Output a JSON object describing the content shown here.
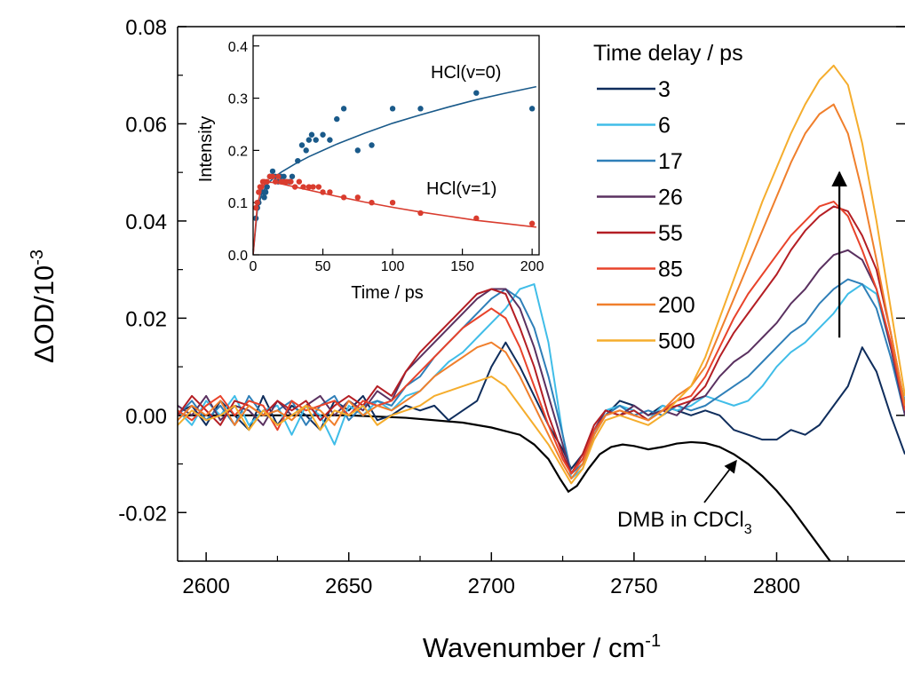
{
  "chart_data": [
    {
      "type": "line",
      "xlabel": "Wavenumber / cm",
      "xlabel_sup": "-1",
      "ylabel": "ΔOD/10",
      "ylabel_sup": "-3",
      "xlim": [
        2590,
        2845
      ],
      "ylim": [
        -0.03,
        0.08
      ],
      "xticks": [
        "2600",
        "2650",
        "2700",
        "2750",
        "2800"
      ],
      "yticks": [
        "-0.02",
        "0.00",
        "0.02",
        "0.04",
        "0.06",
        "0.08"
      ],
      "grid": false,
      "legend_title": "Time delay / ps",
      "legend_position": "top-right",
      "x": [
        2590,
        2595,
        2600,
        2605,
        2610,
        2615,
        2620,
        2625,
        2630,
        2635,
        2640,
        2645,
        2650,
        2655,
        2660,
        2665,
        2670,
        2675,
        2680,
        2685,
        2690,
        2695,
        2700,
        2705,
        2710,
        2715,
        2720,
        2725,
        2728,
        2732,
        2736,
        2740,
        2745,
        2750,
        2755,
        2760,
        2765,
        2770,
        2775,
        2780,
        2785,
        2790,
        2795,
        2800,
        2805,
        2810,
        2815,
        2820,
        2825,
        2830,
        2835,
        2840,
        2845
      ],
      "series": [
        {
          "name": "3",
          "color": "#0f2d5c",
          "values": [
            0.0005,
            0.002,
            -0.002,
            0.003,
            0.0,
            -0.003,
            0.004,
            -0.002,
            0.002,
            0.0,
            -0.003,
            0.003,
            0.001,
            0.004,
            -0.001,
            0.0,
            0.002,
            0.001,
            0.002,
            -0.001,
            0.001,
            0.003,
            0.01,
            0.015,
            0.01,
            0.004,
            -0.002,
            -0.007,
            -0.011,
            -0.008,
            -0.003,
            0.0,
            0.003,
            0.002,
            0.0,
            0.002,
            0.001,
            0.0,
            0.001,
            0.0,
            -0.003,
            -0.004,
            -0.005,
            -0.005,
            -0.003,
            -0.004,
            -0.002,
            0.002,
            0.006,
            0.014,
            0.009,
            0.0,
            -0.008
          ]
        },
        {
          "name": "6",
          "color": "#40bde8",
          "values": [
            0.001,
            -0.002,
            0.003,
            0.0,
            0.004,
            -0.002,
            0.001,
            0.002,
            -0.004,
            0.002,
            0.0,
            -0.006,
            0.002,
            0.0,
            0.003,
            0.001,
            0.004,
            0.005,
            0.008,
            0.011,
            0.013,
            0.016,
            0.019,
            0.022,
            0.026,
            0.027,
            0.015,
            -0.004,
            -0.013,
            -0.011,
            -0.004,
            0.001,
            0.002,
            0.001,
            -0.001,
            0.002,
            0.001,
            0.002,
            0.004,
            0.003,
            0.002,
            0.003,
            0.006,
            0.01,
            0.013,
            0.015,
            0.018,
            0.021,
            0.025,
            0.027,
            0.025,
            0.014,
            0.003
          ]
        },
        {
          "name": "17",
          "color": "#2f7fb8",
          "values": [
            0.0,
            0.003,
            -0.001,
            0.002,
            -0.002,
            0.004,
            0.0,
            0.001,
            0.003,
            -0.002,
            0.002,
            0.004,
            -0.001,
            0.002,
            0.003,
            0.002,
            0.006,
            0.008,
            0.012,
            0.015,
            0.018,
            0.021,
            0.024,
            0.026,
            0.024,
            0.018,
            0.008,
            -0.004,
            -0.012,
            -0.01,
            -0.004,
            0.0,
            0.002,
            0.0,
            0.001,
            0.0,
            0.002,
            0.001,
            0.002,
            0.004,
            0.006,
            0.008,
            0.011,
            0.014,
            0.017,
            0.019,
            0.023,
            0.026,
            0.028,
            0.027,
            0.022,
            0.012,
            0.0
          ]
        },
        {
          "name": "26",
          "color": "#5a3160",
          "values": [
            0.002,
            0.0,
            0.004,
            -0.001,
            0.002,
            0.001,
            -0.002,
            0.003,
            0.0,
            0.002,
            0.004,
            0.0,
            0.003,
            0.001,
            0.005,
            0.003,
            0.009,
            0.012,
            0.015,
            0.018,
            0.021,
            0.024,
            0.026,
            0.026,
            0.022,
            0.014,
            0.004,
            -0.006,
            -0.012,
            -0.009,
            -0.003,
            0.001,
            0.0,
            0.002,
            0.0,
            0.001,
            0.0,
            0.003,
            0.004,
            0.008,
            0.011,
            0.013,
            0.016,
            0.019,
            0.023,
            0.026,
            0.03,
            0.033,
            0.034,
            0.032,
            0.026,
            0.014,
            0.0
          ]
        },
        {
          "name": "55",
          "color": "#b41e24",
          "values": [
            0.0,
            0.004,
            0.001,
            -0.002,
            0.003,
            0.002,
            0.0,
            0.003,
            0.001,
            0.003,
            -0.001,
            0.002,
            0.004,
            0.002,
            0.006,
            0.004,
            0.009,
            0.013,
            0.016,
            0.019,
            0.022,
            0.025,
            0.026,
            0.025,
            0.018,
            0.01,
            0.0,
            -0.008,
            -0.012,
            -0.008,
            -0.002,
            0.001,
            0.0,
            0.001,
            -0.001,
            0.001,
            0.002,
            0.003,
            0.006,
            0.012,
            0.017,
            0.021,
            0.025,
            0.029,
            0.034,
            0.038,
            0.041,
            0.043,
            0.042,
            0.037,
            0.03,
            0.017,
            0.002
          ]
        },
        {
          "name": "85",
          "color": "#e8432b",
          "values": [
            0.001,
            -0.001,
            0.002,
            0.004,
            0.0,
            0.003,
            0.002,
            -0.003,
            0.003,
            0.001,
            0.002,
            0.003,
            0.0,
            0.003,
            0.002,
            0.003,
            0.006,
            0.009,
            0.012,
            0.015,
            0.018,
            0.02,
            0.022,
            0.02,
            0.014,
            0.006,
            -0.002,
            -0.009,
            -0.012,
            -0.009,
            -0.003,
            0.0,
            0.001,
            0.0,
            -0.001,
            0.001,
            0.003,
            0.004,
            0.008,
            0.014,
            0.02,
            0.025,
            0.029,
            0.033,
            0.037,
            0.04,
            0.043,
            0.044,
            0.041,
            0.034,
            0.026,
            0.015,
            0.001
          ]
        },
        {
          "name": "200",
          "color": "#f07f2c",
          "values": [
            -0.001,
            0.002,
            0.0,
            0.003,
            -0.002,
            0.002,
            0.0,
            0.001,
            -0.001,
            0.002,
            0.001,
            -0.002,
            0.003,
            0.0,
            0.002,
            0.001,
            0.003,
            0.005,
            0.008,
            0.01,
            0.012,
            0.014,
            0.015,
            0.013,
            0.008,
            0.002,
            -0.004,
            -0.01,
            -0.013,
            -0.01,
            -0.004,
            0.0,
            0.001,
            0.0,
            -0.001,
            0.001,
            0.004,
            0.006,
            0.01,
            0.017,
            0.024,
            0.031,
            0.038,
            0.045,
            0.052,
            0.058,
            0.062,
            0.064,
            0.058,
            0.046,
            0.032,
            0.017,
            0.002
          ]
        },
        {
          "name": "500",
          "color": "#f5ad2d",
          "values": [
            -0.002,
            0.001,
            -0.001,
            0.0,
            0.002,
            -0.003,
            0.001,
            -0.002,
            0.0,
            0.002,
            -0.003,
            0.001,
            0.0,
            0.002,
            -0.002,
            0.0,
            0.001,
            0.002,
            0.004,
            0.005,
            0.006,
            0.007,
            0.008,
            0.006,
            0.002,
            -0.002,
            -0.006,
            -0.011,
            -0.014,
            -0.011,
            -0.005,
            -0.001,
            0.0,
            -0.001,
            -0.002,
            0.0,
            0.003,
            0.006,
            0.012,
            0.02,
            0.028,
            0.036,
            0.044,
            0.051,
            0.058,
            0.064,
            0.069,
            0.072,
            0.068,
            0.056,
            0.04,
            0.022,
            0.004
          ]
        }
      ],
      "reference": {
        "label": "DMB in CDCl",
        "label_sub": "3",
        "color": "#000000",
        "x": [
          2590,
          2620,
          2650,
          2670,
          2690,
          2700,
          2710,
          2715,
          2720,
          2724,
          2727,
          2730,
          2734,
          2738,
          2742,
          2746,
          2750,
          2755,
          2760,
          2765,
          2770,
          2775,
          2780,
          2785,
          2790,
          2795,
          2800,
          2805,
          2810,
          2815,
          2820
        ],
        "values": [
          0.0,
          0.0,
          0.0,
          -0.0005,
          -0.0015,
          -0.0025,
          -0.004,
          -0.006,
          -0.009,
          -0.013,
          -0.0157,
          -0.0145,
          -0.011,
          -0.008,
          -0.0065,
          -0.006,
          -0.0063,
          -0.007,
          -0.0065,
          -0.0058,
          -0.0055,
          -0.0057,
          -0.0065,
          -0.008,
          -0.01,
          -0.0125,
          -0.0155,
          -0.019,
          -0.023,
          -0.027,
          -0.031
        ]
      },
      "annotation_arrow": {
        "x": 2822,
        "y_from": 0.016,
        "y_to": 0.05
      }
    },
    {
      "type": "scatter",
      "xlabel": "Time / ps",
      "ylabel": "Intensity",
      "xlim": [
        0,
        205
      ],
      "ylim": [
        0,
        0.42
      ],
      "xticks": [
        "0",
        "50",
        "100",
        "150",
        "200"
      ],
      "yticks": [
        "0.0",
        "0.1",
        "0.2",
        "0.3",
        "0.4"
      ],
      "series": [
        {
          "name": "HCl(v=0)",
          "color": "#1a5a8a",
          "x": [
            2,
            3,
            4,
            5,
            6,
            7,
            8,
            9,
            10,
            12,
            14,
            16,
            18,
            20,
            22,
            24,
            26,
            28,
            32,
            35,
            38,
            40,
            42,
            45,
            50,
            55,
            60,
            65,
            75,
            85,
            100,
            120,
            160,
            200
          ],
          "y": [
            0.07,
            0.09,
            0.1,
            0.12,
            0.12,
            0.12,
            0.11,
            0.12,
            0.13,
            0.15,
            0.16,
            0.15,
            0.14,
            0.15,
            0.15,
            0.14,
            0.14,
            0.15,
            0.18,
            0.21,
            0.2,
            0.22,
            0.23,
            0.22,
            0.23,
            0.22,
            0.26,
            0.28,
            0.2,
            0.21,
            0.28,
            0.28,
            0.31,
            0.28
          ],
          "fit": [
            [
              0,
              0
            ],
            [
              3,
              0.085
            ],
            [
              6,
              0.115
            ],
            [
              10,
              0.135
            ],
            [
              15,
              0.148
            ],
            [
              20,
              0.158
            ],
            [
              30,
              0.174
            ],
            [
              40,
              0.188
            ],
            [
              50,
              0.2
            ],
            [
              60,
              0.212
            ],
            [
              80,
              0.233
            ],
            [
              100,
              0.252
            ],
            [
              120,
              0.268
            ],
            [
              140,
              0.283
            ],
            [
              160,
              0.297
            ],
            [
              180,
              0.309
            ],
            [
              203,
              0.322
            ]
          ]
        },
        {
          "name": "HCl(v=1)",
          "color": "#d93c2e",
          "x": [
            2,
            3,
            4,
            5,
            6,
            7,
            8,
            10,
            12,
            14,
            16,
            18,
            20,
            22,
            24,
            27,
            30,
            33,
            36,
            40,
            43,
            47,
            50,
            55,
            65,
            75,
            85,
            100,
            120,
            160,
            200
          ],
          "y": [
            0.09,
            0.1,
            0.12,
            0.13,
            0.13,
            0.14,
            0.14,
            0.14,
            0.15,
            0.15,
            0.14,
            0.15,
            0.14,
            0.14,
            0.14,
            0.14,
            0.13,
            0.14,
            0.13,
            0.13,
            0.13,
            0.13,
            0.12,
            0.12,
            0.11,
            0.11,
            0.1,
            0.1,
            0.08,
            0.07,
            0.06
          ],
          "fit": [
            [
              0,
              0
            ],
            [
              3,
              0.095
            ],
            [
              6,
              0.128
            ],
            [
              9,
              0.137
            ],
            [
              12,
              0.139
            ],
            [
              16,
              0.138
            ],
            [
              20,
              0.136
            ],
            [
              30,
              0.13
            ],
            [
              40,
              0.124
            ],
            [
              50,
              0.118
            ],
            [
              60,
              0.112
            ],
            [
              80,
              0.101
            ],
            [
              100,
              0.091
            ],
            [
              120,
              0.082
            ],
            [
              140,
              0.074
            ],
            [
              160,
              0.066
            ],
            [
              180,
              0.06
            ],
            [
              203,
              0.053
            ]
          ]
        }
      ]
    }
  ]
}
